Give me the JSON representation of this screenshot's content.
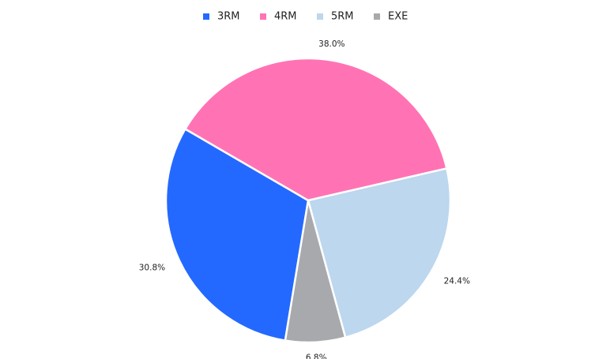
{
  "chart_data": {
    "type": "pie",
    "categories": [
      "3RM",
      "4RM",
      "5RM",
      "EXE"
    ],
    "values": [
      30.8,
      38.0,
      24.4,
      6.8
    ],
    "value_labels": [
      "30.8%",
      "38.0%",
      "24.4%",
      "6.8%"
    ],
    "colors": [
      "#2469ff",
      "#ff73b5",
      "#bcd7ee",
      "#a8a9ad"
    ],
    "legend": "top"
  }
}
